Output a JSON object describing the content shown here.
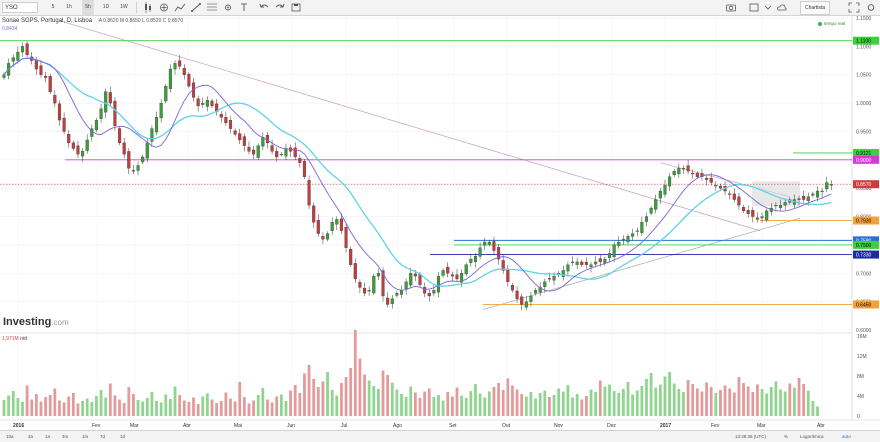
{
  "toolbar": {
    "symbol": "YSO",
    "intervals": [
      "5",
      "1h",
      "5h",
      "1D",
      "1W",
      "5M",
      "1D"
    ],
    "active_interval_index": 2,
    "right_button": "Chartista",
    "icons": [
      "candlestick-icon",
      "compare-icon",
      "indicators-icon",
      "drawing-line-icon",
      "drawing-fib-icon",
      "settings-icon",
      "text-icon",
      "undo-icon",
      "redo-icon",
      "save-icon",
      "camera-icon",
      "new-window-icon",
      "cloud-icon",
      "fullscreen-icon"
    ]
  },
  "legend": {
    "title": "Sonae SGPS, Portugal, D, Lisboa",
    "ohlc": "A 0.8620  M 0.8650  L 0.8520  C 0.8570",
    "sma_value": "0.8434",
    "realtime": "tempo real"
  },
  "volume": {
    "label": "1,971M",
    "suffix": "n/d",
    "axis_labels": [
      "16M",
      "12M",
      "8M",
      "4M",
      "0"
    ]
  },
  "logo": {
    "text": "Investing",
    "suffix": ".com"
  },
  "price_axis": {
    "labels": [
      "1.1500",
      "1.1000",
      "1.0500",
      "1.0000",
      "0.9500",
      "0.9000",
      "0.8500",
      "0.8000",
      "0.7500",
      "0.7000",
      "0.6500",
      "0.6000"
    ],
    "tags": [
      {
        "value": "1.1100",
        "color": "#3ecf3e",
        "text_color": "#000000"
      },
      {
        "value": "0.9121",
        "color": "#3ecf3e",
        "text_color": "#000000"
      },
      {
        "value": "0.9000",
        "color": "#d63ad6",
        "text_color": "#ffffff"
      },
      {
        "value": "0.8570",
        "color": "#d13a3a",
        "text_color": "#ffffff"
      },
      {
        "value": "0.7930",
        "color": "#f2a23a",
        "text_color": "#000000"
      },
      {
        "value": "0.7580",
        "color": "#2a6fd6",
        "text_color": "#ffffff"
      },
      {
        "value": "0.7500",
        "color": "#3ecf3e",
        "text_color": "#000000"
      },
      {
        "value": "0.7330",
        "color": "#1a2aa8",
        "text_color": "#ffffff"
      },
      {
        "value": "0.6450",
        "color": "#f2a23a",
        "text_color": "#000000"
      }
    ]
  },
  "time_axis": {
    "labels": [
      "2016",
      "Fev",
      "Mar",
      "Abr",
      "Mai",
      "Jun",
      "Jul",
      "Ago",
      "Set",
      "Out",
      "Nov",
      "Dez",
      "2017",
      "Fev",
      "Mar",
      "Abr"
    ],
    "bold": [
      "2016",
      "2017"
    ]
  },
  "bottom_bar": {
    "ranges": [
      "10a",
      "3a",
      "1a",
      "3m",
      "1m",
      "7d",
      "1d"
    ],
    "time": "13:38:38 (UTC)",
    "pct": "%",
    "log": "Logarítmica",
    "auto": "auto"
  },
  "chart_data": {
    "type": "candlestick",
    "title": "Sonae SGPS, Portugal, D, Lisboa",
    "y_range": [
      0.6,
      1.15
    ],
    "volume_range": [
      0,
      16000000
    ],
    "horizontal_levels": [
      {
        "value": 1.11,
        "color": "#3ecf3e"
      },
      {
        "value": 0.9121,
        "color": "#3ecf3e"
      },
      {
        "value": 0.9,
        "color": "#d63ad6"
      },
      {
        "value": 0.857,
        "color": "#d13a3a"
      },
      {
        "value": 0.793,
        "color": "#f2a23a"
      },
      {
        "value": 0.758,
        "color": "#2a6fd6"
      },
      {
        "value": 0.75,
        "color": "#3ecf3e"
      },
      {
        "value": 0.733,
        "color": "#1a2aa8"
      },
      {
        "value": 0.645,
        "color": "#f2a23a"
      }
    ],
    "close_series": [
      1.05,
      1.07,
      1.08,
      1.09,
      1.1,
      1.085,
      1.075,
      1.06,
      1.05,
      1.045,
      1.02,
      1.0,
      0.97,
      0.95,
      0.93,
      0.92,
      0.91,
      0.915,
      0.935,
      0.955,
      0.97,
      0.99,
      1.02,
      1.0,
      0.96,
      0.93,
      0.91,
      0.885,
      0.88,
      0.89,
      0.905,
      0.93,
      0.955,
      0.975,
      1.0,
      1.03,
      1.06,
      1.07,
      1.065,
      1.05,
      1.03,
      1.01,
      0.995,
      1.0,
      1.005,
      0.995,
      0.985,
      0.975,
      0.965,
      0.955,
      0.945,
      0.935,
      0.925,
      0.915,
      0.91,
      0.925,
      0.94,
      0.93,
      0.915,
      0.905,
      0.91,
      0.92,
      0.915,
      0.905,
      0.895,
      0.87,
      0.82,
      0.79,
      0.77,
      0.76,
      0.77,
      0.79,
      0.795,
      0.775,
      0.745,
      0.715,
      0.69,
      0.675,
      0.665,
      0.67,
      0.695,
      0.7,
      0.66,
      0.645,
      0.655,
      0.665,
      0.67,
      0.685,
      0.7,
      0.695,
      0.68,
      0.665,
      0.66,
      0.67,
      0.695,
      0.705,
      0.7,
      0.695,
      0.69,
      0.7,
      0.715,
      0.725,
      0.73,
      0.745,
      0.755,
      0.755,
      0.74,
      0.725,
      0.705,
      0.685,
      0.67,
      0.655,
      0.645,
      0.65,
      0.66,
      0.67,
      0.675,
      0.685,
      0.69,
      0.695,
      0.7,
      0.705,
      0.715,
      0.72,
      0.72,
      0.715,
      0.715,
      0.715,
      0.72,
      0.72,
      0.725,
      0.735,
      0.75,
      0.755,
      0.76,
      0.765,
      0.77,
      0.775,
      0.79,
      0.8,
      0.815,
      0.83,
      0.845,
      0.855,
      0.87,
      0.88,
      0.885,
      0.885,
      0.88,
      0.875,
      0.87,
      0.87,
      0.865,
      0.86,
      0.855,
      0.85,
      0.845,
      0.84,
      0.83,
      0.82,
      0.81,
      0.805,
      0.8,
      0.795,
      0.8,
      0.81,
      0.815,
      0.82,
      0.82,
      0.825,
      0.825,
      0.83,
      0.83,
      0.83,
      0.835,
      0.84,
      0.845,
      0.845,
      0.86,
      0.857
    ],
    "volume_series": [
      3.2,
      4.1,
      5.0,
      3.6,
      2.8,
      6.1,
      3.3,
      4.4,
      2.9,
      3.8,
      4.2,
      5.5,
      3.1,
      2.7,
      3.9,
      4.6,
      2.5,
      3.0,
      3.5,
      2.8,
      4.0,
      5.2,
      3.7,
      6.5,
      4.1,
      3.3,
      2.6,
      5.8,
      4.4,
      3.2,
      2.9,
      3.6,
      4.8,
      3.0,
      2.7,
      4.3,
      3.4,
      5.9,
      4.2,
      3.1,
      2.8,
      3.7,
      2.4,
      3.9,
      4.5,
      3.3,
      2.6,
      3.0,
      4.7,
      3.5,
      2.9,
      6.8,
      3.8,
      2.5,
      3.1,
      4.2,
      5.6,
      3.3,
      2.7,
      3.9,
      4.3,
      3.0,
      5.1,
      6.2,
      4.6,
      8.5,
      10.2,
      7.4,
      5.8,
      6.9,
      8.8,
      5.2,
      4.1,
      6.6,
      7.8,
      9.6,
      17.2,
      11.5,
      8.3,
      7.1,
      6.0,
      5.4,
      9.1,
      8.2,
      6.7,
      5.3,
      4.4,
      3.8,
      5.9,
      4.7,
      3.6,
      4.9,
      5.5,
      3.8,
      4.2,
      3.1,
      4.8,
      3.9,
      5.7,
      4.1,
      3.6,
      5.0,
      6.4,
      4.5,
      3.7,
      4.9,
      5.8,
      6.6,
      5.2,
      7.5,
      6.1,
      5.3,
      4.4,
      3.9,
      4.8,
      3.5,
      4.6,
      5.1,
      3.8,
      4.2,
      5.5,
      4.9,
      6.2,
      3.7,
      4.4,
      3.3,
      4.0,
      5.3,
      4.8,
      7.1,
      5.9,
      6.3,
      5.0,
      4.6,
      5.4,
      6.8,
      4.3,
      5.1,
      6.0,
      7.4,
      8.6,
      5.7,
      6.3,
      7.9,
      8.8,
      6.5,
      5.4,
      4.8,
      7.2,
      6.4,
      5.5,
      4.9,
      6.7,
      5.8,
      4.6,
      5.2,
      6.1,
      5.5,
      4.7,
      7.8,
      6.6,
      5.9,
      4.8,
      6.3,
      5.4,
      4.5,
      5.8,
      6.9,
      5.3,
      4.9,
      6.5,
      5.7,
      7.6,
      6.4,
      5.1,
      3.0,
      1.9
    ]
  }
}
